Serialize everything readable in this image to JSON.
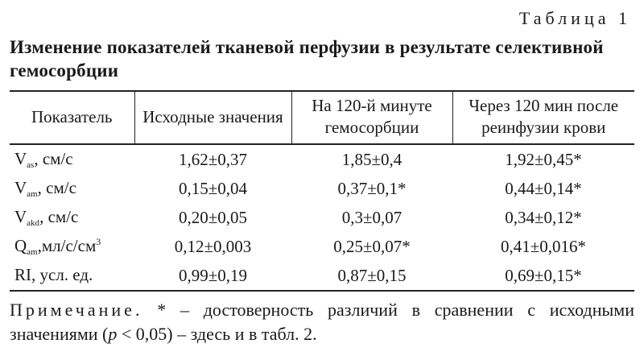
{
  "table_label": "Таблица 1",
  "title": "Изменение показателей тканевой перфузии в результате селективной гемосорбции",
  "headers": [
    "Показатель",
    "Исходные значения",
    "На 120-й минуте гемосорбции",
    "Через 120 мин после реинфузии крови"
  ],
  "rows": [
    {
      "sym": "V",
      "sub": "as",
      "unit": ", см/с",
      "sup": "",
      "v1": "1,62±0,37",
      "v2": "1,85±0,4",
      "v3": "1,92±0,45*"
    },
    {
      "sym": "V",
      "sub": "am",
      "unit": ", см/с",
      "sup": "",
      "v1": "0,15±0,04",
      "v2": "0,37±0,1*",
      "v3": "0,44±0,14*"
    },
    {
      "sym": "V",
      "sub": "akd",
      "unit": ", см/с",
      "sup": "",
      "v1": "0,20±0,05",
      "v2": "0,3±0,07",
      "v3": "0,34±0,12*"
    },
    {
      "sym": "Q",
      "sub": "am",
      "unit": ",мл/с/см",
      "sup": "3",
      "v1": "0,12±0,003",
      "v2": "0,25±0,07*",
      "v3": "0,41±0,016*"
    },
    {
      "sym": "RI, усл. ед.",
      "sub": "",
      "unit": "",
      "sup": "",
      "v1": "0,99±0,19",
      "v2": "0,87±0,15",
      "v3": "0,69±0,15*"
    }
  ],
  "note": {
    "label": "Примечание.",
    "text1": " * – достоверность различий в сравнении с исходными значениями (",
    "p": "p",
    "text2": " < 0,05) – здесь и в табл. 2."
  }
}
